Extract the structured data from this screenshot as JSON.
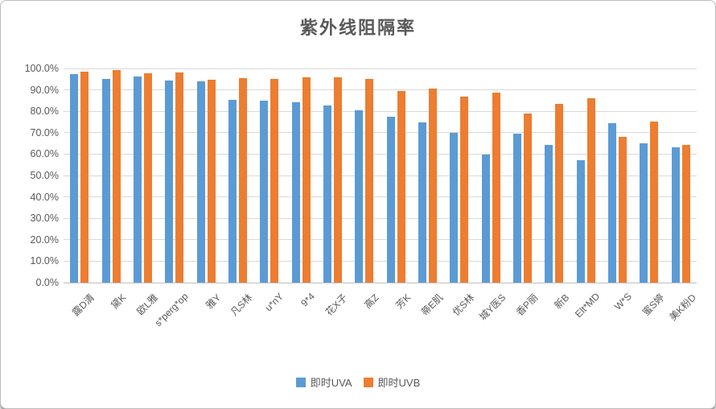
{
  "chart_data": {
    "type": "bar",
    "title": "紫外线阻隔率",
    "categories": [
      "露D清",
      "黛K",
      "欧L雅",
      "s*perg*op",
      "雅Y",
      "凡S林",
      "u*nY",
      "9*4",
      "花X子",
      "高Z",
      "芳K",
      "蒂E肌",
      "优S林",
      "城Y医S",
      "香P丽",
      "新B",
      "Elt*MD",
      "W*S",
      "蜜S婷",
      "美K粉D"
    ],
    "series": [
      {
        "name": "即时UVA",
        "color": "#5b9bd5",
        "values": [
          97.2,
          95.0,
          96.3,
          94.5,
          93.8,
          85.3,
          85.0,
          84.1,
          82.8,
          80.6,
          77.5,
          74.7,
          70.0,
          59.9,
          69.6,
          64.2,
          57.0,
          74.4,
          65.2,
          63.3
        ]
      },
      {
        "name": "即时UVB",
        "color": "#ed7d31",
        "values": [
          98.4,
          99.3,
          97.8,
          98.3,
          94.9,
          95.5,
          95.2,
          95.7,
          96.0,
          95.0,
          89.6,
          90.6,
          86.9,
          88.6,
          79.1,
          83.6,
          86.2,
          68.0,
          75.3,
          64.3
        ]
      }
    ],
    "xlabel": "",
    "ylabel": "",
    "y_axis": {
      "min": 0,
      "max": 100,
      "step": 10,
      "tick_labels": [
        "0.0%",
        "10.0%",
        "20.0%",
        "30.0%",
        "40.0%",
        "50.0%",
        "60.0%",
        "70.0%",
        "80.0%",
        "90.0%",
        "100.0%"
      ]
    },
    "grid": "horizontal",
    "legend_position": "bottom",
    "grid_color": "#d9d9d9",
    "axis_text_color": "#595959"
  }
}
